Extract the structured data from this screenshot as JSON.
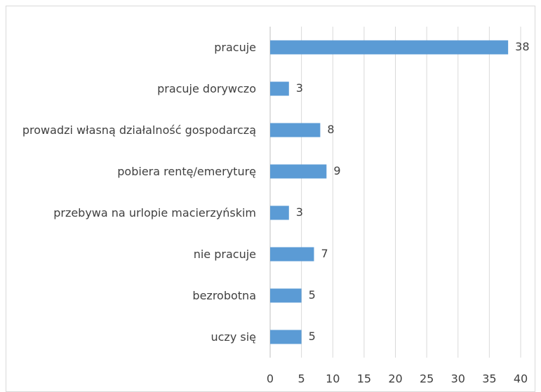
{
  "chart_data": {
    "type": "bar",
    "orientation": "horizontal",
    "categories": [
      "pracuje",
      "pracuje dorywczo",
      "prowadzi własną działalność gospodarczą",
      "pobiera rentę/emeryturę",
      "przebywa na urlopie macierzyńskim",
      "nie pracuje",
      "bezrobotna",
      "uczy się"
    ],
    "values": [
      38,
      3,
      8,
      9,
      3,
      7,
      5,
      5
    ],
    "color": "#5b9bd5",
    "xlim": [
      0,
      40
    ],
    "xticks": [
      0,
      5,
      10,
      15,
      20,
      25,
      30,
      35,
      40
    ],
    "grid": true
  }
}
